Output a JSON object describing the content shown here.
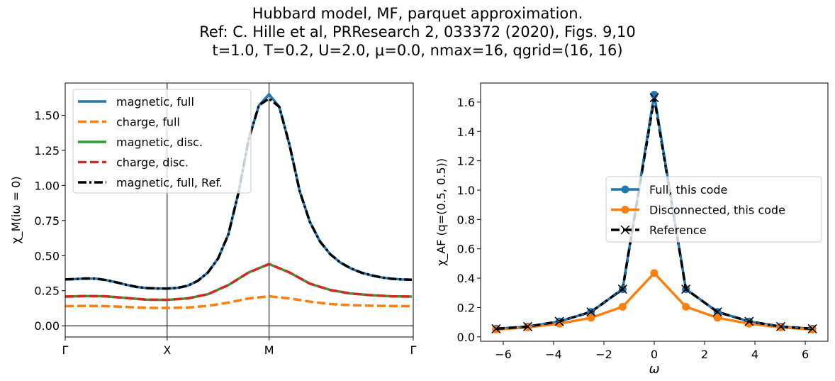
{
  "title_lines": [
    "Hubbard model, MF, parquet approximation.",
    "Ref: C. Hille et al, PRResearch 2, 033372 (2020), Figs. 9,10",
    "t=1.0, T=0.2, U=2.0, μ=0.0, nmax=16, qgrid=(16, 16)"
  ],
  "chart_data": [
    {
      "type": "line",
      "ylabel": "χ_M(iω = 0)",
      "xlabel": "",
      "x_ticks": [
        "Γ",
        "X",
        "M",
        "Γ"
      ],
      "y_ticks": [
        "0.00",
        "0.25",
        "0.50",
        "0.75",
        "1.00",
        "1.25",
        "1.50"
      ],
      "ylim": [
        -0.08,
        1.73
      ],
      "legend_position": "top-left",
      "colors": {
        "blue": "#1f77b4",
        "orange": "#ff7f0e",
        "green": "#2ca02c",
        "red": "#d62728",
        "black": "#000000"
      },
      "series": [
        {
          "name": "magnetic, full",
          "color": "#1f77b4",
          "style": "solid",
          "x": [
            0,
            0.1,
            0.2,
            0.3,
            0.4,
            0.5,
            0.6,
            0.7,
            0.8,
            0.9,
            1.0,
            1.1,
            1.2,
            1.3,
            1.4,
            1.5,
            1.6,
            1.7,
            1.8,
            1.9,
            2.0,
            2.1,
            2.2,
            2.3,
            2.4,
            2.5,
            2.6,
            2.7,
            2.8,
            2.9,
            3.0,
            3.1,
            3.2,
            3.3,
            3.4
          ],
          "values": [
            0.33,
            0.333,
            0.337,
            0.336,
            0.326,
            0.31,
            0.292,
            0.277,
            0.269,
            0.266,
            0.265,
            0.27,
            0.285,
            0.32,
            0.38,
            0.48,
            0.65,
            0.95,
            1.33,
            1.57,
            1.65,
            1.56,
            1.29,
            0.96,
            0.74,
            0.6,
            0.51,
            0.45,
            0.41,
            0.38,
            0.36,
            0.345,
            0.335,
            0.33,
            0.328
          ]
        },
        {
          "name": "charge, full",
          "color": "#ff7f0e",
          "style": "dashed",
          "x": [
            0,
            0.2,
            0.4,
            0.6,
            0.8,
            1.0,
            1.2,
            1.4,
            1.6,
            1.8,
            2.0,
            2.2,
            2.4,
            2.6,
            2.8,
            3.0,
            3.2,
            3.4
          ],
          "values": [
            0.14,
            0.142,
            0.14,
            0.134,
            0.128,
            0.127,
            0.13,
            0.142,
            0.165,
            0.195,
            0.21,
            0.195,
            0.172,
            0.155,
            0.147,
            0.143,
            0.141,
            0.14
          ]
        },
        {
          "name": "magnetic, disc.",
          "color": "#2ca02c",
          "style": "solid",
          "x": [
            0,
            0.2,
            0.4,
            0.6,
            0.8,
            1.0,
            1.2,
            1.4,
            1.6,
            1.8,
            2.0,
            2.2,
            2.4,
            2.6,
            2.8,
            3.0,
            3.2,
            3.4
          ],
          "values": [
            0.208,
            0.212,
            0.21,
            0.198,
            0.186,
            0.185,
            0.195,
            0.225,
            0.29,
            0.38,
            0.44,
            0.38,
            0.3,
            0.255,
            0.23,
            0.218,
            0.21,
            0.208
          ]
        },
        {
          "name": "charge, disc.",
          "color": "#d62728",
          "style": "dashed",
          "x": [
            0,
            0.2,
            0.4,
            0.6,
            0.8,
            1.0,
            1.2,
            1.4,
            1.6,
            1.8,
            2.0,
            2.2,
            2.4,
            2.6,
            2.8,
            3.0,
            3.2,
            3.4
          ],
          "values": [
            0.208,
            0.212,
            0.21,
            0.198,
            0.186,
            0.185,
            0.195,
            0.225,
            0.29,
            0.38,
            0.44,
            0.38,
            0.3,
            0.255,
            0.23,
            0.218,
            0.21,
            0.208
          ]
        },
        {
          "name": "magnetic, full, Ref.",
          "color": "#000000",
          "style": "dashdot",
          "x": [
            0,
            0.1,
            0.2,
            0.3,
            0.4,
            0.5,
            0.6,
            0.7,
            0.8,
            0.9,
            1.0,
            1.1,
            1.2,
            1.3,
            1.4,
            1.5,
            1.6,
            1.7,
            1.8,
            1.9,
            2.0,
            2.1,
            2.2,
            2.3,
            2.4,
            2.5,
            2.6,
            2.7,
            2.8,
            2.9,
            3.0,
            3.1,
            3.2,
            3.3,
            3.4
          ],
          "values": [
            0.33,
            0.333,
            0.337,
            0.336,
            0.326,
            0.31,
            0.292,
            0.277,
            0.269,
            0.266,
            0.265,
            0.27,
            0.285,
            0.32,
            0.38,
            0.48,
            0.65,
            0.95,
            1.33,
            1.57,
            1.62,
            1.56,
            1.29,
            0.96,
            0.74,
            0.6,
            0.51,
            0.45,
            0.41,
            0.38,
            0.36,
            0.345,
            0.335,
            0.33,
            0.328
          ]
        }
      ]
    },
    {
      "type": "line",
      "xlabel": "ω",
      "ylabel": "χ_AF (q=(0.5, 0.5))",
      "x_ticks": [
        "−6",
        "−4",
        "−2",
        "0",
        "2",
        "4",
        "6"
      ],
      "y_ticks": [
        "0.0",
        "0.2",
        "0.4",
        "0.6",
        "0.8",
        "1.0",
        "1.2",
        "1.4",
        "1.6"
      ],
      "xlim": [
        -6.9,
        6.9
      ],
      "ylim": [
        -0.03,
        1.73
      ],
      "legend_position": "center-right",
      "series": [
        {
          "name": "Full, this code",
          "color": "#1f77b4",
          "marker": "o",
          "style": "solid",
          "x": [
            -6.283,
            -5.027,
            -3.77,
            -2.513,
            -1.257,
            0,
            1.257,
            2.513,
            3.77,
            5.027,
            6.283
          ],
          "values": [
            0.055,
            0.07,
            0.105,
            0.17,
            0.325,
            1.65,
            0.325,
            0.17,
            0.105,
            0.07,
            0.055
          ]
        },
        {
          "name": "Disconnected, this code",
          "color": "#ff7f0e",
          "marker": "o",
          "style": "solid",
          "x": [
            -6.283,
            -5.027,
            -3.77,
            -2.513,
            -1.257,
            0,
            1.257,
            2.513,
            3.77,
            5.027,
            6.283
          ],
          "values": [
            0.05,
            0.065,
            0.09,
            0.13,
            0.205,
            0.435,
            0.205,
            0.13,
            0.09,
            0.065,
            0.05
          ]
        },
        {
          "name": "Reference",
          "color": "#000000",
          "marker": "x",
          "style": "dashed",
          "x": [
            -6.283,
            -5.027,
            -3.77,
            -2.513,
            -1.257,
            0,
            1.257,
            2.513,
            3.77,
            5.027,
            6.283
          ],
          "values": [
            0.055,
            0.07,
            0.105,
            0.17,
            0.325,
            1.63,
            0.325,
            0.17,
            0.105,
            0.07,
            0.055
          ]
        }
      ]
    }
  ]
}
